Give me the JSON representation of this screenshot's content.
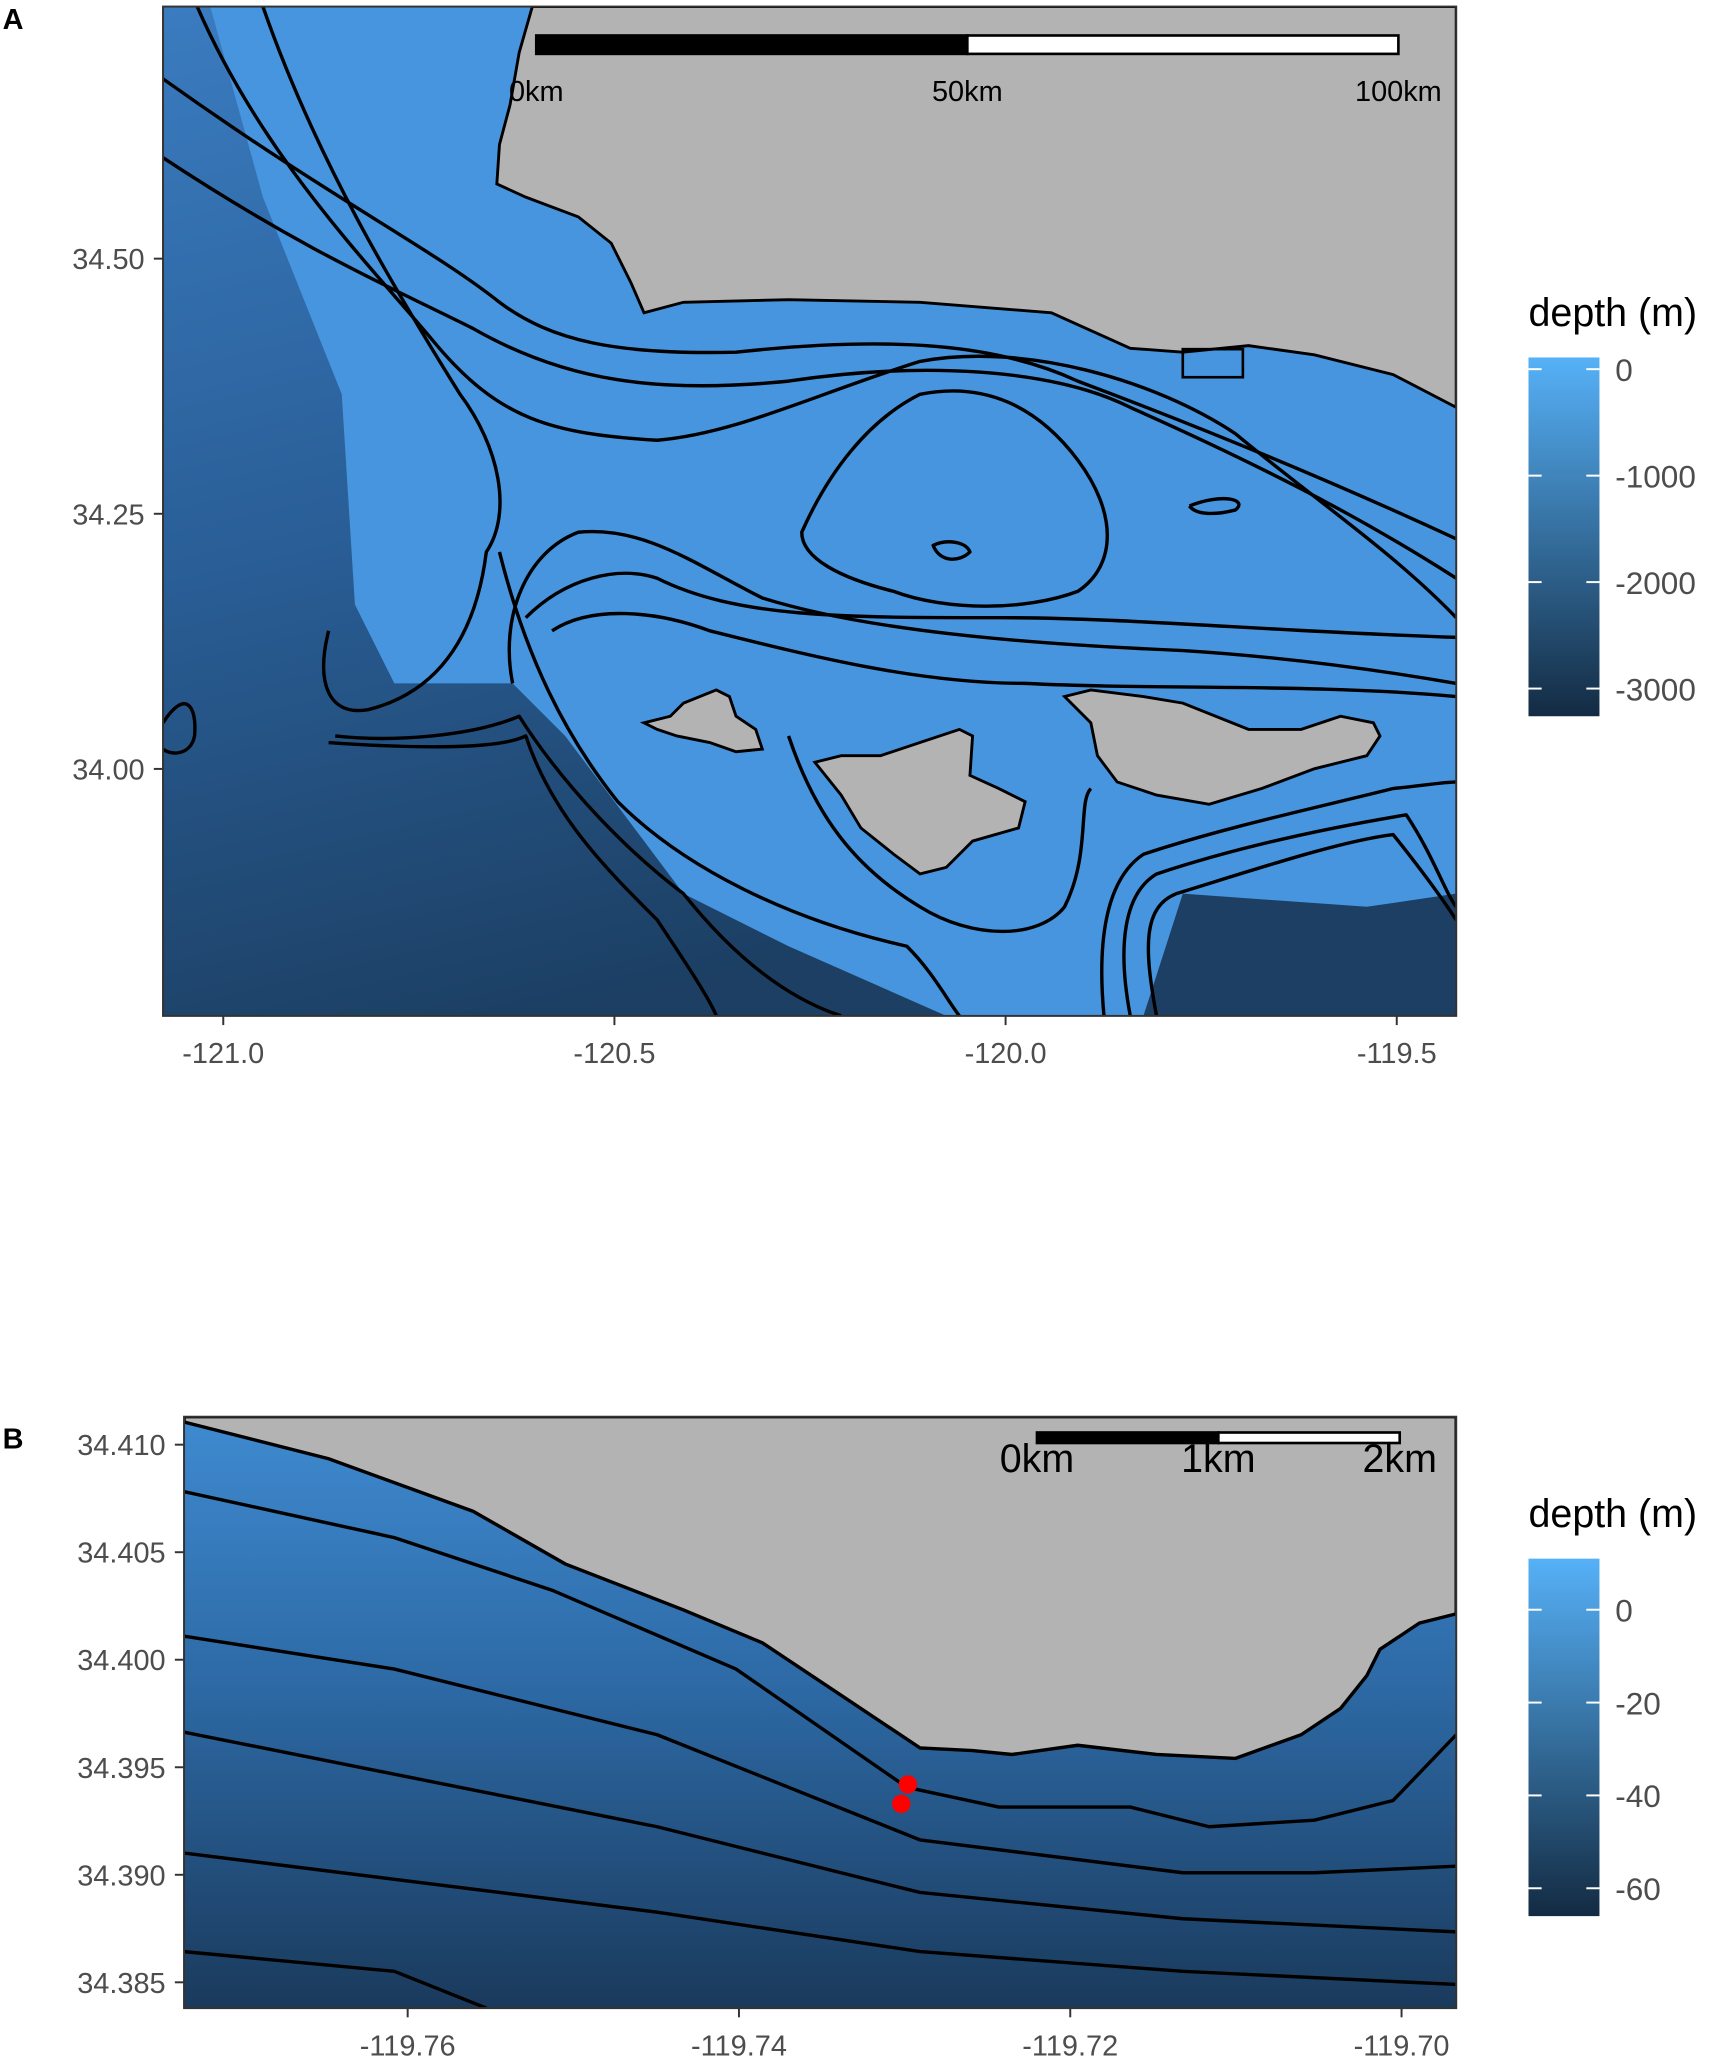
{
  "panels": [
    {
      "label": "A",
      "type": "map",
      "xlim": [
        -121.077,
        -119.424
      ],
      "ylim": [
        33.758,
        34.747
      ],
      "xticks": [
        {
          "value": -121,
          "label": "-121.0"
        },
        -120.5,
        {
          "value": -120,
          "label": "-120.0"
        },
        -119.5
      ],
      "yticks": [
        {
          "value": 34,
          "label": "34.00"
        },
        34.25,
        {
          "value": 34.5,
          "label": "34.50"
        }
      ],
      "scale_bar": [
        {
          "value": 0,
          "label": "0km"
        },
        {
          "value": 50,
          "label": "50km"
        },
        {
          "value": 100,
          "label": "100km"
        }
      ],
      "legend": {
        "title": "depth (m)",
        "limits": [
          -3260,
          110
        ],
        "ticks": [
          0,
          -1000,
          -2000,
          -3000
        ]
      }
    },
    {
      "label": "B",
      "type": "map",
      "xlim": [
        -119.7735,
        -119.6967
      ],
      "ylim": [
        34.3838,
        34.4113
      ],
      "xticks": [
        -119.76,
        -119.74,
        -119.72,
        {
          "value": -119.7,
          "label": "-119.70"
        }
      ],
      "yticks": [
        34.385,
        {
          "value": 34.39,
          "label": "34.390"
        },
        34.395,
        {
          "value": 34.4,
          "label": "34.400"
        },
        34.405,
        {
          "value": 34.41,
          "label": "34.410"
        }
      ],
      "scale_bar": [
        {
          "value": 0,
          "label": "0km"
        },
        {
          "value": 1,
          "label": "1km"
        },
        {
          "value": 2,
          "label": "2km"
        }
      ],
      "legend": {
        "title": "depth (m)",
        "limits": [
          -66,
          11
        ],
        "ticks": [
          0,
          -20,
          -40,
          -60
        ]
      },
      "points": {
        "x": [
          -119.7298,
          -119.7302
        ],
        "y": [
          34.3942,
          34.3933
        ],
        "color": "#ff0000"
      }
    }
  ]
}
